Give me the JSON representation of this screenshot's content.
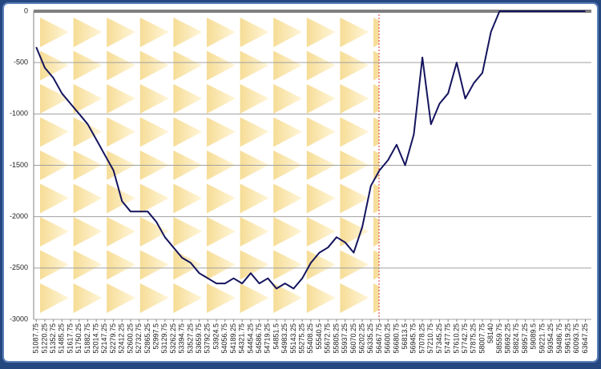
{
  "chart_data": {
    "type": "line",
    "categories": [
      "51087.75",
      "51220.25",
      "51352.75",
      "51485.25",
      "51617.75",
      "51750.25",
      "51882.75",
      "52014.75",
      "52147.25",
      "52279.75",
      "52412.25",
      "52600.25",
      "52732.75",
      "52865.25",
      "52997.5",
      "53129.75",
      "53262.25",
      "53394.75",
      "53527.25",
      "53659.75",
      "53792.25",
      "53924.5",
      "54056.75",
      "54189.25",
      "54321.75",
      "54454.25",
      "54586.75",
      "54719.25",
      "54851.5",
      "54983.25",
      "55143.25",
      "55275.25",
      "55408.25",
      "55540.5",
      "55672.75",
      "55805.25",
      "55937.25",
      "56070.25",
      "56202.25",
      "56335.25",
      "56467.75",
      "56600.25",
      "56680.75",
      "56813.5",
      "56945.75",
      "57078.25",
      "57210.75",
      "57345.25",
      "57477.75",
      "57610.25",
      "57742.75",
      "57875.25",
      "58007.75",
      "58140",
      "58559.75",
      "58692.25",
      "58824.75",
      "58957.25",
      "59089.5",
      "59221.75",
      "59354.25",
      "59486.75",
      "59619.25",
      "60093.75",
      "63647.25"
    ],
    "values": [
      -350,
      -550,
      -650,
      -800,
      -900,
      -1000,
      -1100,
      -1250,
      -1400,
      -1550,
      -1850,
      -1950,
      -1950,
      -1950,
      -2050,
      -2200,
      -2300,
      -2400,
      -2450,
      -2550,
      -2600,
      -2650,
      -2650,
      -2600,
      -2650,
      -2550,
      -2650,
      -2600,
      -2700,
      -2650,
      -2700,
      -2600,
      -2450,
      -2350,
      -2300,
      -2200,
      -2250,
      -2350,
      -2100,
      -1700,
      -1550,
      -1450,
      -1300,
      -1500,
      -1200,
      -450,
      -1100,
      -900,
      -800,
      -500,
      -850,
      -700,
      -600,
      -200,
      0,
      0,
      0,
      0,
      0,
      0,
      0,
      0,
      0,
      0,
      0
    ],
    "color": "#14145e",
    "ylim": [
      -3000,
      0
    ],
    "yticks": [
      -3000,
      -2500,
      -2000,
      -1500,
      -1000,
      -500,
      0
    ],
    "grid": true
  }
}
